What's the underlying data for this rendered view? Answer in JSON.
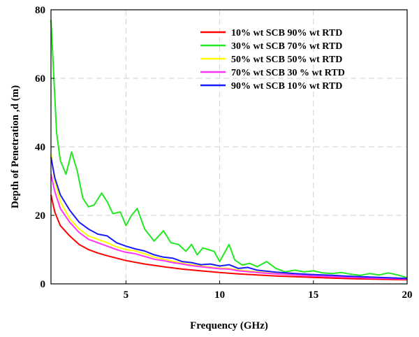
{
  "chart_data": {
    "type": "line",
    "title": "",
    "xlabel": "Frequency (GHz)",
    "ylabel": "Depth of Penetration ,d (m)",
    "xlim": [
      1,
      20
    ],
    "ylim": [
      0,
      80
    ],
    "xticks": [
      5,
      10,
      15,
      20
    ],
    "yticks": [
      0,
      20,
      40,
      60,
      80
    ],
    "grid": true,
    "legend_position": "top-right",
    "series": [
      {
        "name": "10% wt SCB 90% wt RTD",
        "color": "#ff0000",
        "x": [
          1.0,
          1.2,
          1.5,
          2.0,
          2.5,
          3.0,
          3.5,
          4.0,
          5.0,
          6.0,
          7.0,
          8.0,
          9.0,
          10.0,
          11.0,
          12.0,
          13.0,
          14.0,
          15.0,
          16.0,
          17.0,
          18.0,
          19.0,
          20.0
        ],
        "y": [
          26.0,
          21.0,
          17.0,
          14.0,
          11.5,
          10.0,
          9.0,
          8.2,
          6.8,
          5.8,
          5.0,
          4.3,
          3.8,
          3.3,
          2.9,
          2.6,
          2.3,
          2.1,
          1.9,
          1.7,
          1.5,
          1.4,
          1.3,
          1.2
        ]
      },
      {
        "name": "30% wt SCB 70% wt RTD",
        "color": "#22e822",
        "x": [
          1.0,
          1.1,
          1.3,
          1.5,
          1.8,
          2.1,
          2.4,
          2.7,
          3.0,
          3.3,
          3.7,
          4.0,
          4.3,
          4.7,
          5.0,
          5.3,
          5.6,
          6.0,
          6.5,
          7.0,
          7.4,
          7.8,
          8.2,
          8.5,
          8.8,
          9.1,
          9.4,
          9.7,
          10.0,
          10.2,
          10.5,
          10.8,
          11.2,
          11.6,
          12.0,
          12.5,
          13.0,
          13.5,
          14.0,
          14.5,
          15.0,
          15.5,
          16.0,
          16.5,
          17.0,
          17.5,
          18.0,
          18.5,
          19.0,
          19.5,
          20.0
        ],
        "y": [
          77.0,
          66.0,
          44.0,
          36.0,
          32.0,
          38.5,
          33.0,
          25.0,
          22.5,
          23.0,
          26.5,
          24.0,
          20.5,
          21.0,
          17.0,
          20.0,
          22.0,
          16.0,
          12.5,
          15.5,
          12.0,
          11.5,
          9.5,
          11.5,
          8.5,
          10.5,
          10.0,
          9.5,
          6.5,
          8.5,
          11.5,
          7.0,
          5.5,
          6.0,
          5.0,
          6.5,
          4.5,
          3.5,
          4.0,
          3.5,
          3.8,
          3.2,
          3.0,
          3.3,
          2.8,
          2.5,
          3.0,
          2.6,
          3.2,
          2.6,
          1.8
        ]
      },
      {
        "name": "50% wt SCB 50% wt RTD",
        "color": "#ffff00",
        "x": [
          1.0,
          1.2,
          1.5,
          2.0,
          2.5,
          3.0,
          3.5,
          4.0,
          4.5,
          5.0,
          5.5,
          6.0,
          6.5,
          7.0,
          7.5,
          8.0,
          8.5,
          9.0,
          9.5,
          10.0,
          10.5,
          11.0,
          12.0,
          13.0,
          14.0,
          15.0,
          16.0,
          17.0,
          18.0,
          19.0,
          20.0
        ],
        "y": [
          38.0,
          30.0,
          24.0,
          19.0,
          16.0,
          14.0,
          13.0,
          12.0,
          10.8,
          10.0,
          9.6,
          8.8,
          7.8,
          7.2,
          6.6,
          6.0,
          5.6,
          5.2,
          4.9,
          4.6,
          4.5,
          4.0,
          3.5,
          3.0,
          2.7,
          2.4,
          2.2,
          2.0,
          1.8,
          1.7,
          1.5
        ]
      },
      {
        "name": "70% wt SCB 30 % wt RTD",
        "color": "#ff33ff",
        "x": [
          1.0,
          1.2,
          1.5,
          2.0,
          2.5,
          3.0,
          3.5,
          4.0,
          4.5,
          5.0,
          5.5,
          6.0,
          6.5,
          7.0,
          7.5,
          8.0,
          8.5,
          9.0,
          9.5,
          10.0,
          10.5,
          11.0,
          12.0,
          13.0,
          14.0,
          15.0,
          16.0,
          17.0,
          18.0,
          19.0,
          20.0
        ],
        "y": [
          32.0,
          27.0,
          22.0,
          18.0,
          15.0,
          13.0,
          12.0,
          11.0,
          10.0,
          9.2,
          8.8,
          8.0,
          7.2,
          6.8,
          6.2,
          5.8,
          5.3,
          5.0,
          4.7,
          4.4,
          4.3,
          3.8,
          3.3,
          2.9,
          2.6,
          2.3,
          2.1,
          1.9,
          1.7,
          1.6,
          1.4
        ]
      },
      {
        "name": "90% wt SCB 10% wt RTD",
        "color": "#1a1aff",
        "x": [
          1.0,
          1.2,
          1.5,
          2.0,
          2.5,
          3.0,
          3.5,
          4.0,
          4.5,
          5.0,
          5.5,
          6.0,
          6.5,
          7.0,
          7.5,
          8.0,
          8.5,
          9.0,
          9.5,
          10.0,
          10.5,
          11.0,
          11.5,
          12.0,
          13.0,
          14.0,
          15.0,
          16.0,
          17.0,
          18.0,
          19.0,
          20.0
        ],
        "y": [
          37.0,
          31.0,
          26.0,
          21.5,
          18.0,
          16.0,
          14.5,
          14.0,
          12.0,
          11.0,
          10.2,
          9.6,
          8.5,
          7.8,
          7.5,
          6.5,
          6.2,
          5.6,
          5.8,
          5.2,
          5.6,
          4.5,
          4.8,
          4.0,
          3.4,
          3.0,
          2.7,
          2.5,
          2.2,
          2.0,
          1.8,
          1.6
        ]
      }
    ]
  }
}
